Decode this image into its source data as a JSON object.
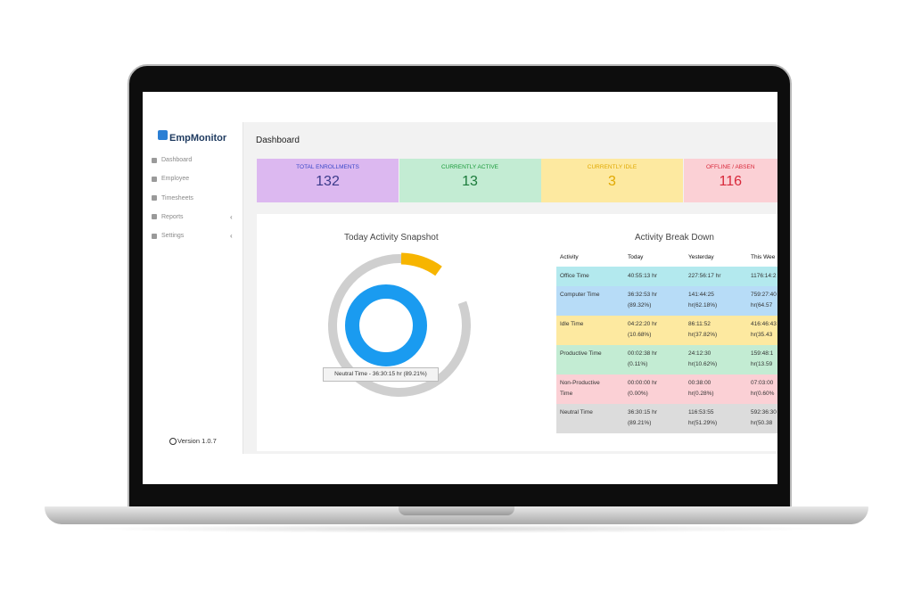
{
  "sidebar": {
    "brand": "EmpMonitor",
    "nav": [
      "Dashboard",
      "Employee",
      "Timesheets",
      "Reports",
      "Settings"
    ],
    "version": "Version 1.0.7"
  },
  "header": {
    "title": "Dashboard"
  },
  "cards": [
    {
      "label": "TOTAL ENROLLMENTS",
      "value": "132"
    },
    {
      "label": "CURRENTLY ACTIVE",
      "value": "13"
    },
    {
      "label": "CURRENTLY IDLE",
      "value": "3"
    },
    {
      "label": "OFFLINE / ABSEN",
      "value": "116"
    }
  ],
  "snapshot": {
    "title": "Today Activity Snapshot",
    "tooltip": "Neutral Time - 36:30:15 hr (89.21%)"
  },
  "breakdown": {
    "title": "Activity Break Down",
    "columns": [
      "Activity",
      "Today",
      "Yesterday",
      "This Wee"
    ],
    "rows": [
      [
        [
          "Office Time"
        ],
        [
          "40:55:13 hr"
        ],
        [
          "227:56:17 hr"
        ],
        [
          "1176:14:2"
        ]
      ],
      [
        [
          "Computer Time"
        ],
        [
          "36:32:53 hr",
          "(89.32%)"
        ],
        [
          "141:44:25",
          "hr(62.18%)"
        ],
        [
          "759:27:40",
          "hr(64.57"
        ]
      ],
      [
        [
          "Idle Time"
        ],
        [
          "04:22:20 hr",
          "(10.68%)"
        ],
        [
          "86:11:52",
          "hr(37.82%)"
        ],
        [
          "416:46:43",
          "hr(35.43"
        ]
      ],
      [
        [
          "Productive Time"
        ],
        [
          "00:02:38 hr",
          "(0.11%)"
        ],
        [
          "24:12:30",
          "hr(10.62%)"
        ],
        [
          "159:48:1",
          "hr(13.59"
        ]
      ],
      [
        [
          "Non-Productive",
          "Time"
        ],
        [
          "00:00:00 hr",
          "(0.00%)"
        ],
        [
          "00:38:00",
          "hr(0.28%)"
        ],
        [
          "07:03:00",
          "hr(0.60%"
        ]
      ],
      [
        [
          "Neutral Time"
        ],
        [
          "36:30:15 hr",
          "(89.21%)"
        ],
        [
          "116:53:55",
          "hr(51.29%)"
        ],
        [
          "592:36:30",
          "hr(50.38"
        ]
      ]
    ]
  }
}
